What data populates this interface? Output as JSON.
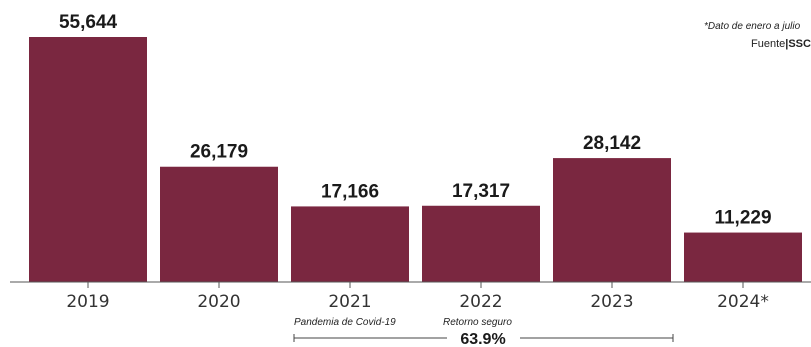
{
  "chart_data": {
    "type": "bar",
    "categories": [
      "2019",
      "2020",
      "2021",
      "2022",
      "2023",
      "2024*"
    ],
    "values": [
      55644,
      26179,
      17166,
      17317,
      28142,
      11229
    ],
    "value_labels": [
      "55,644",
      "26,179",
      "17,166",
      "17,317",
      "28,142",
      "11,229"
    ],
    "title": "",
    "xlabel": "",
    "ylabel": "",
    "ylim": [
      0,
      55644
    ],
    "grid": false,
    "bar_color": "#7a2740",
    "footnote": "*Dato de enero a julio",
    "source_prefix": "Fuente",
    "source_name": "SSC",
    "annotations": {
      "left_label": "Pandemia de Covid-19",
      "right_label": "Retorno seguro",
      "change": "63.9%"
    }
  }
}
